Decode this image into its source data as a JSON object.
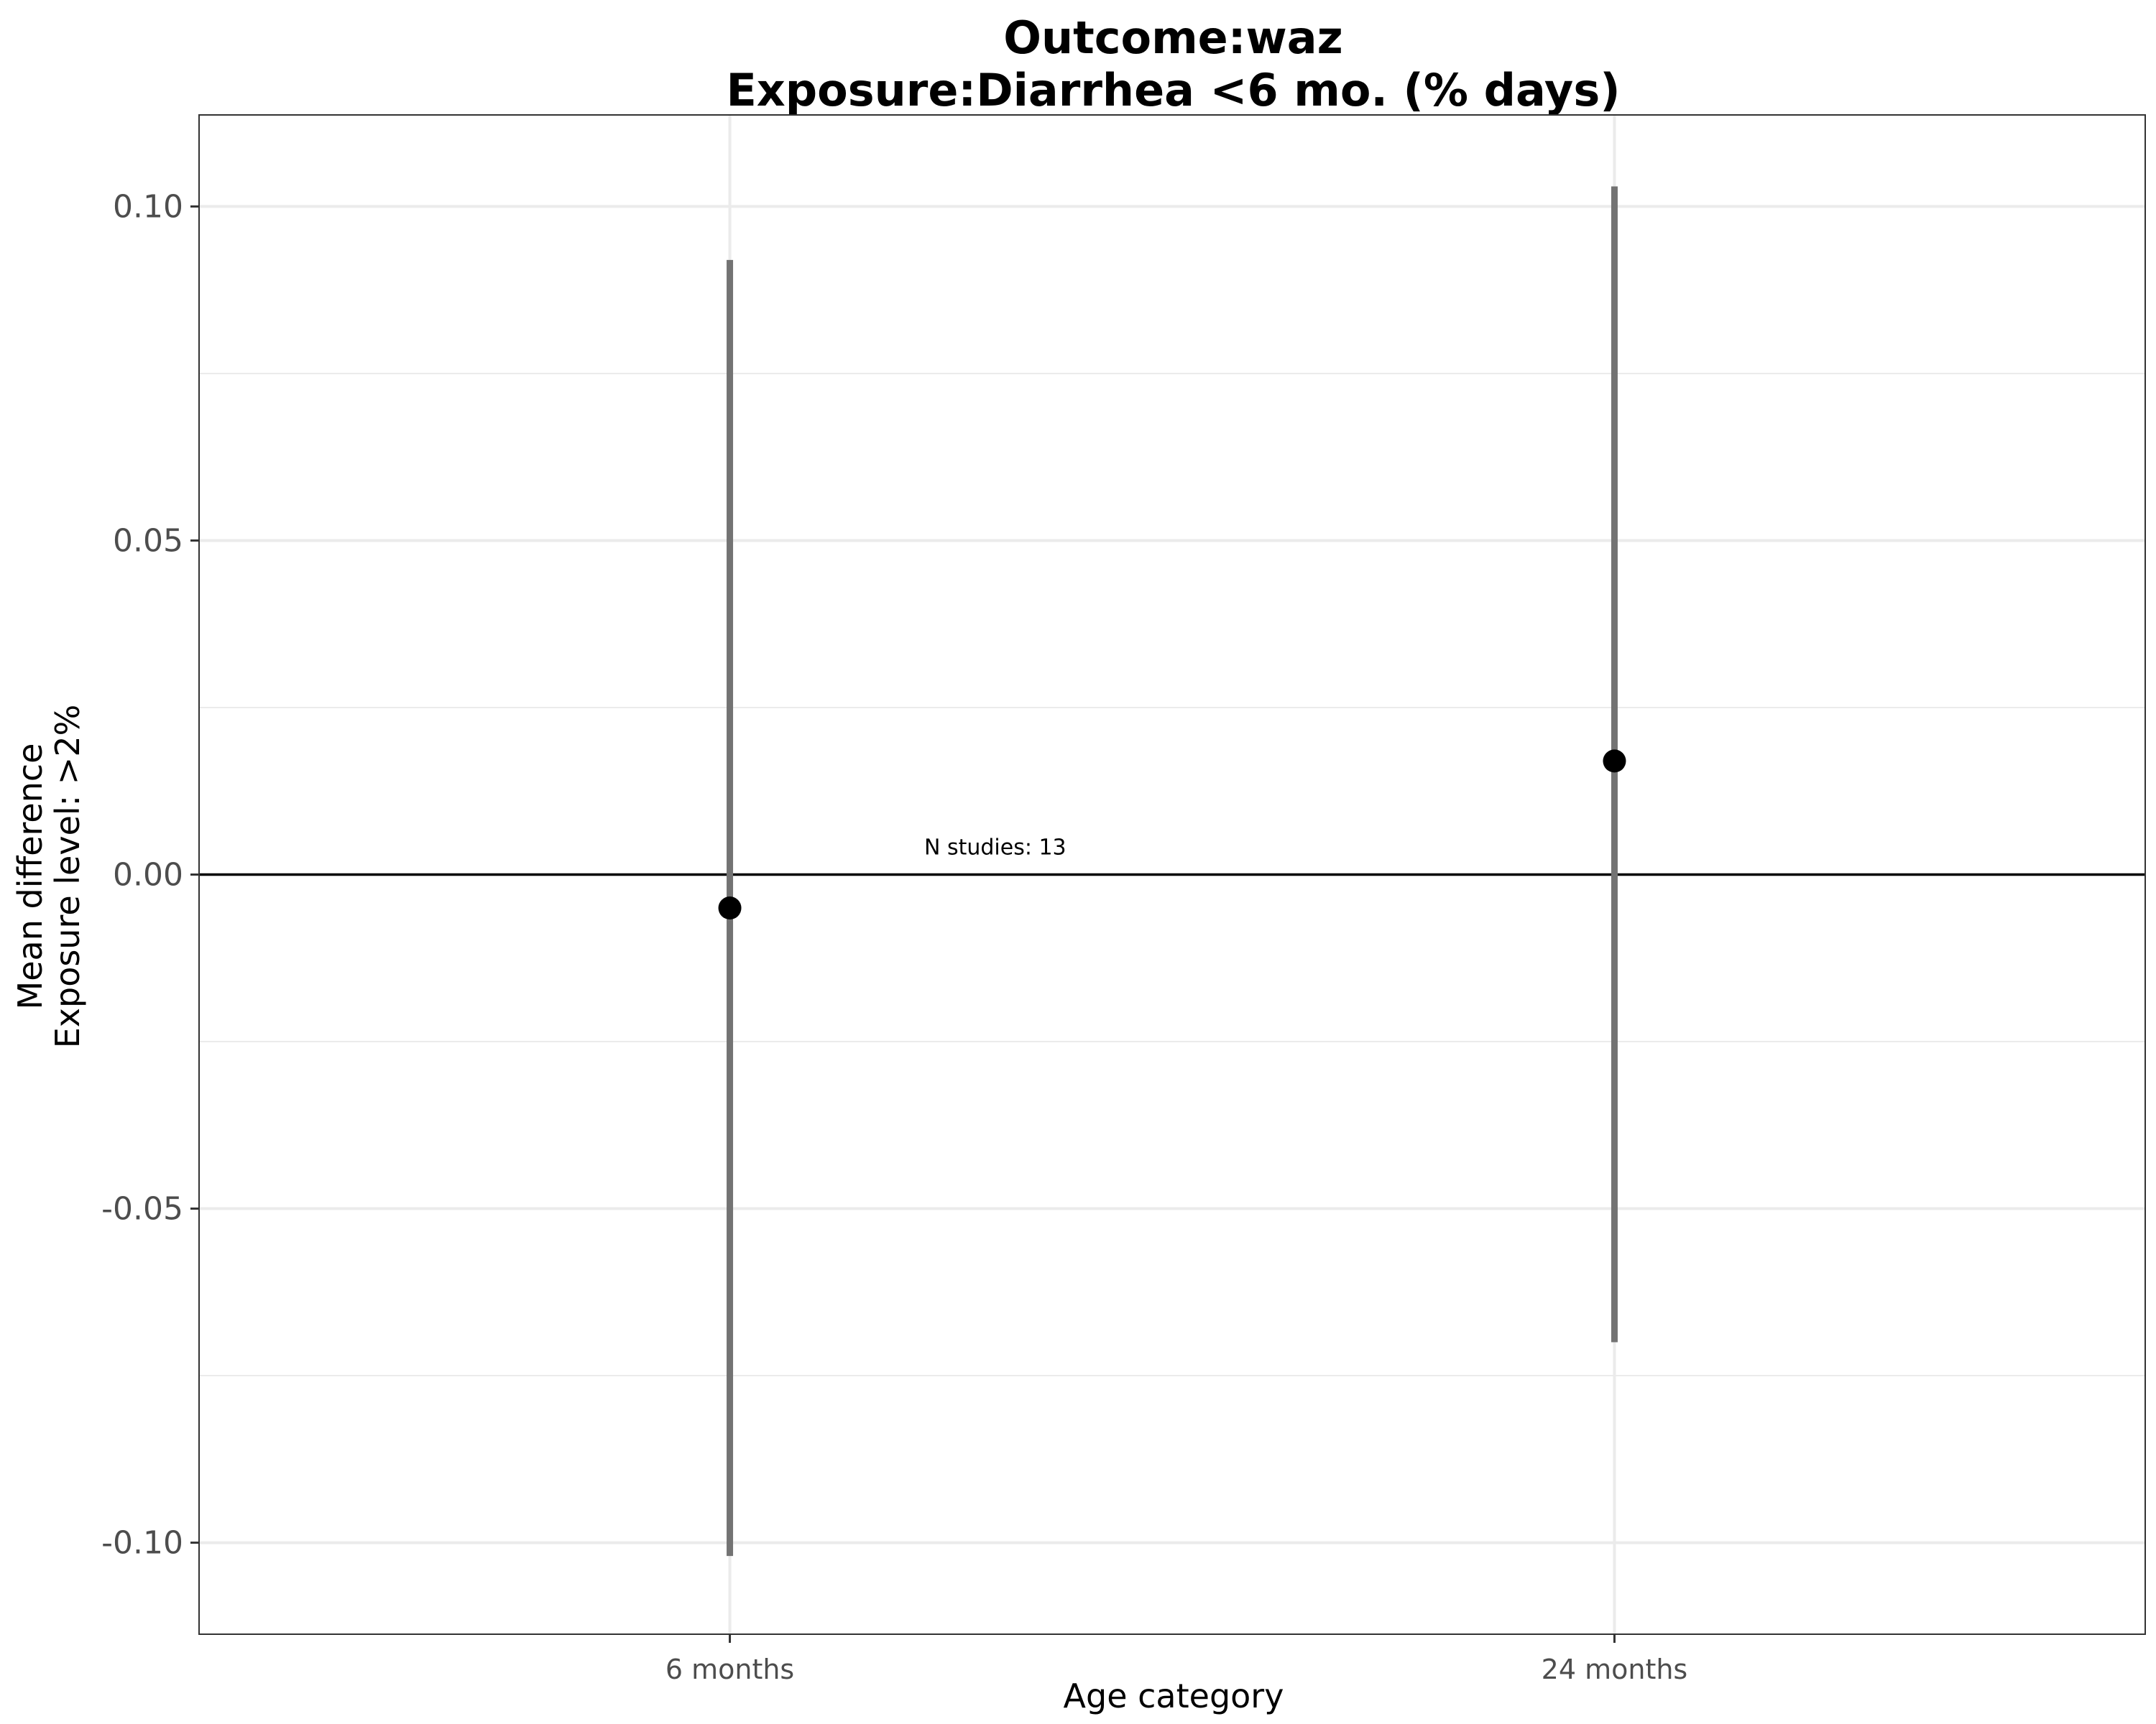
{
  "chart_data": {
    "type": "scatter",
    "title_lines": [
      "Outcome:waz",
      "Exposure:Diarrhea <6 mo. (% days)"
    ],
    "xlabel": "Age category",
    "ylabel_lines": [
      "Mean difference",
      "Exposure level: >2%"
    ],
    "categories": [
      "6 months",
      "24 months"
    ],
    "series": [
      {
        "values": [
          -0.005,
          0.017
        ],
        "ci_lower": [
          -0.102,
          -0.07
        ],
        "ci_upper": [
          0.092,
          0.103
        ]
      }
    ],
    "ylim": [
      -0.1137,
      0.1137
    ],
    "yticks": [
      {
        "value": 0.1,
        "label": "0.10"
      },
      {
        "value": 0.05,
        "label": "0.05"
      },
      {
        "value": 0.0,
        "label": "0.00"
      },
      {
        "value": -0.05,
        "label": "-0.05"
      },
      {
        "value": -0.1,
        "label": "-0.10"
      }
    ],
    "reference_line": 0,
    "annotation": {
      "text": "N studies: 13",
      "x": 1.3,
      "y": 0.003
    },
    "grid": true,
    "point_color": "#000000",
    "interval_color": "#737373"
  }
}
